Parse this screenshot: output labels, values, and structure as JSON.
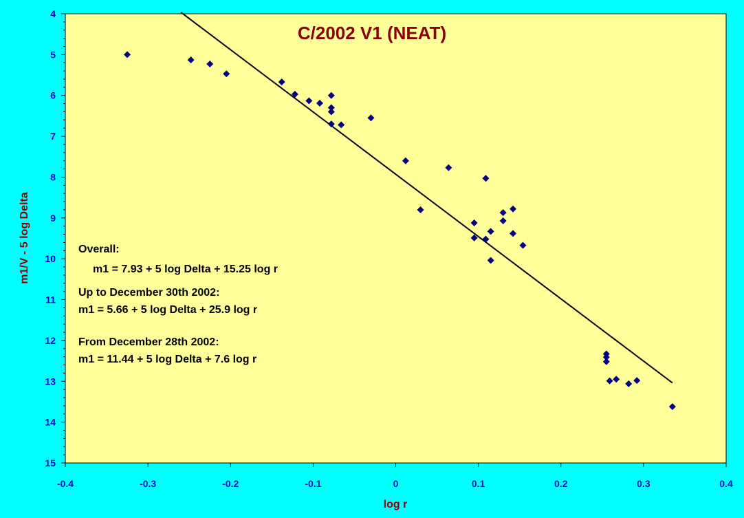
{
  "colors": {
    "background": "#00FFFF",
    "plot_area": "#FFFF99",
    "marker": "#000080",
    "fit_line": "#000000",
    "tick_label": "#0000CC",
    "title": "#8B0000"
  },
  "chart_data": {
    "type": "scatter",
    "title": "C/2002 V1 (NEAT)",
    "xlabel": "log r",
    "ylabel": "m1/V - 5 log Delta",
    "xlim": [
      -0.4,
      0.4
    ],
    "ylim": [
      4,
      15
    ],
    "y_inverted": true,
    "x_ticks": [
      -0.4,
      -0.3,
      -0.2,
      -0.1,
      0,
      0.1,
      0.2,
      0.3,
      0.4
    ],
    "x_tick_labels": [
      "-0.4",
      "-0.3",
      "-0.2",
      "-0.1",
      "0",
      "0.1",
      "0.2",
      "0.3",
      "0.4"
    ],
    "y_ticks": [
      4,
      5,
      6,
      7,
      8,
      9,
      10,
      11,
      12,
      13,
      14,
      15
    ],
    "y_tick_labels": [
      "4",
      "5",
      "6",
      "7",
      "8",
      "9",
      "10",
      "11",
      "12",
      "13",
      "14",
      "15"
    ],
    "grid": false,
    "legend": "none",
    "marker": "diamond",
    "points": [
      {
        "x": -0.325,
        "y": 5.0
      },
      {
        "x": -0.248,
        "y": 5.13
      },
      {
        "x": -0.225,
        "y": 5.23
      },
      {
        "x": -0.205,
        "y": 5.47
      },
      {
        "x": -0.138,
        "y": 5.67
      },
      {
        "x": -0.122,
        "y": 5.97
      },
      {
        "x": -0.105,
        "y": 6.13
      },
      {
        "x": -0.092,
        "y": 6.19
      },
      {
        "x": -0.078,
        "y": 6.0
      },
      {
        "x": -0.078,
        "y": 6.3
      },
      {
        "x": -0.078,
        "y": 6.4
      },
      {
        "x": -0.078,
        "y": 6.7
      },
      {
        "x": -0.066,
        "y": 6.72
      },
      {
        "x": -0.03,
        "y": 6.55
      },
      {
        "x": 0.012,
        "y": 7.6
      },
      {
        "x": 0.03,
        "y": 8.8
      },
      {
        "x": 0.064,
        "y": 7.77
      },
      {
        "x": 0.095,
        "y": 9.12
      },
      {
        "x": 0.095,
        "y": 9.49
      },
      {
        "x": 0.109,
        "y": 8.03
      },
      {
        "x": 0.109,
        "y": 9.52
      },
      {
        "x": 0.115,
        "y": 9.33
      },
      {
        "x": 0.115,
        "y": 10.04
      },
      {
        "x": 0.13,
        "y": 8.87
      },
      {
        "x": 0.13,
        "y": 9.07
      },
      {
        "x": 0.142,
        "y": 8.78
      },
      {
        "x": 0.142,
        "y": 9.38
      },
      {
        "x": 0.154,
        "y": 9.67
      },
      {
        "x": 0.255,
        "y": 12.33
      },
      {
        "x": 0.255,
        "y": 12.41
      },
      {
        "x": 0.255,
        "y": 12.52
      },
      {
        "x": 0.259,
        "y": 12.99
      },
      {
        "x": 0.267,
        "y": 12.95
      },
      {
        "x": 0.282,
        "y": 13.06
      },
      {
        "x": 0.292,
        "y": 12.98
      },
      {
        "x": 0.335,
        "y": 13.62
      }
    ],
    "fit_line": {
      "intercept": 7.93,
      "slope": 15.25,
      "x_range": [
        -0.26,
        0.335
      ]
    },
    "annotations": [
      "Overall:",
      "m1 = 7.93 + 5 log Delta + 15.25 log r",
      "Up to December 30th 2002:",
      "m1 = 5.66 + 5 log Delta + 25.9 log r",
      "From December 28th 2002:",
      "m1 = 11.44 + 5 log Delta + 7.6 log r"
    ]
  }
}
